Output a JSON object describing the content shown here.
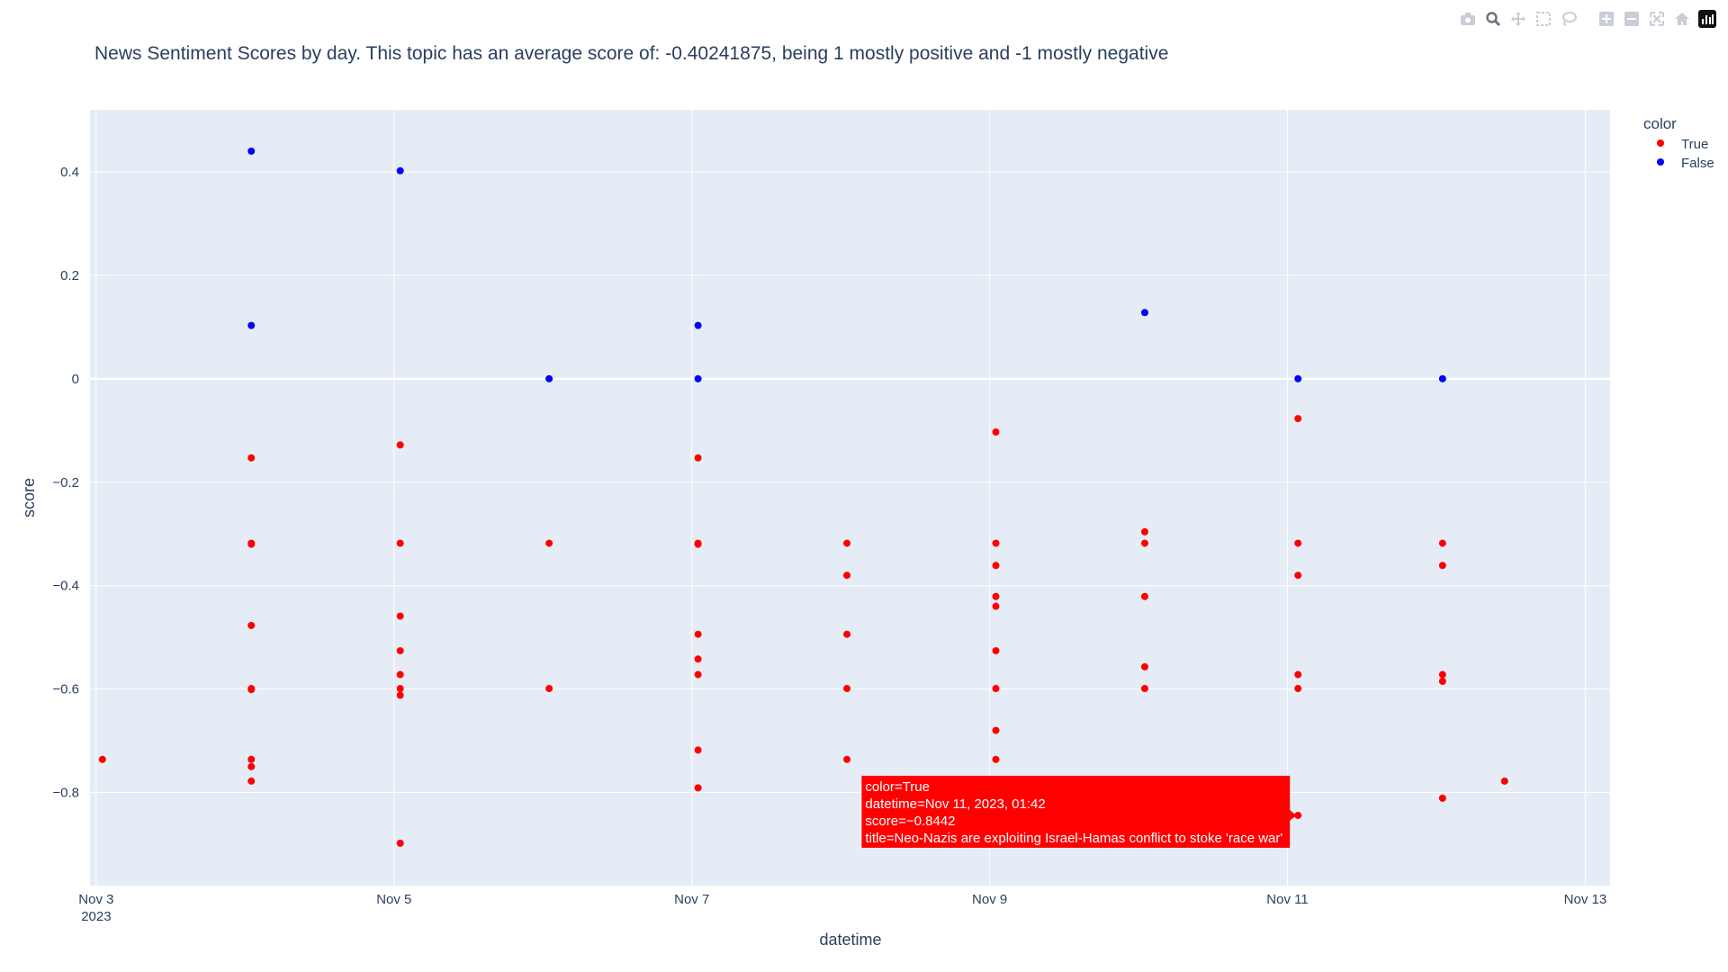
{
  "toolbar": {
    "icons": [
      "camera-icon",
      "zoom-icon",
      "pan-icon",
      "box-select-icon",
      "lasso-select-icon",
      "zoom-in-icon",
      "zoom-out-icon",
      "autoscale-icon",
      "reset-axes-icon",
      "plotly-logo-icon"
    ]
  },
  "chart_data": {
    "type": "scatter",
    "title": "News Sentiment Scores by day. This topic has an average score of: -0.40241875, being 1 mostly positive and -1 mostly negative",
    "xlabel": "datetime",
    "ylabel": "score",
    "x_ticks": [
      {
        "date": "2023-11-03",
        "label": "Nov 3",
        "sublabel": "2023"
      },
      {
        "date": "2023-11-05",
        "label": "Nov 5",
        "sublabel": ""
      },
      {
        "date": "2023-11-07",
        "label": "Nov 7",
        "sublabel": ""
      },
      {
        "date": "2023-11-09",
        "label": "Nov 9",
        "sublabel": ""
      },
      {
        "date": "2023-11-11",
        "label": "Nov 11",
        "sublabel": ""
      },
      {
        "date": "2023-11-13",
        "label": "Nov 13",
        "sublabel": ""
      }
    ],
    "y_ticks": [
      {
        "value": 0.4,
        "label": "0.4"
      },
      {
        "value": 0.2,
        "label": "0.2"
      },
      {
        "value": 0,
        "label": "0"
      },
      {
        "value": -0.2,
        "label": "−0.2"
      },
      {
        "value": -0.4,
        "label": "−0.4"
      },
      {
        "value": -0.6,
        "label": "−0.6"
      },
      {
        "value": -0.8,
        "label": "−0.8"
      }
    ],
    "xlim": [
      "2023-11-02T23:00",
      "2023-11-13T04:00"
    ],
    "ylim": [
      -0.98,
      0.52
    ],
    "grid": true,
    "legend": {
      "title": "color",
      "placement": "right"
    },
    "colors": {
      "plot_bg": "#E5ECF6",
      "grid": "#ffffff",
      "true": "#ff0000",
      "false": "#0000ff"
    },
    "series": [
      {
        "name": "True",
        "color": "#ff0000",
        "points": [
          {
            "x": "2023-11-03T01:00",
            "y": -0.736
          },
          {
            "x": "2023-11-04T01:00",
            "y": -0.153
          },
          {
            "x": "2023-11-04T01:00",
            "y": -0.318
          },
          {
            "x": "2023-11-04T01:00",
            "y": -0.32
          },
          {
            "x": "2023-11-04T01:00",
            "y": -0.477
          },
          {
            "x": "2023-11-04T01:00",
            "y": -0.599
          },
          {
            "x": "2023-11-04T01:00",
            "y": -0.601
          },
          {
            "x": "2023-11-04T01:00",
            "y": -0.736
          },
          {
            "x": "2023-11-04T01:00",
            "y": -0.75
          },
          {
            "x": "2023-11-04T01:00",
            "y": -0.778
          },
          {
            "x": "2023-11-05T01:00",
            "y": -0.128
          },
          {
            "x": "2023-11-05T01:00",
            "y": -0.318
          },
          {
            "x": "2023-11-05T01:00",
            "y": -0.459
          },
          {
            "x": "2023-11-05T01:00",
            "y": -0.526
          },
          {
            "x": "2023-11-05T01:00",
            "y": -0.572
          },
          {
            "x": "2023-11-05T01:00",
            "y": -0.599
          },
          {
            "x": "2023-11-05T01:00",
            "y": -0.612
          },
          {
            "x": "2023-11-05T01:00",
            "y": -0.898
          },
          {
            "x": "2023-11-06T01:00",
            "y": -0.318
          },
          {
            "x": "2023-11-06T01:00",
            "y": -0.599
          },
          {
            "x": "2023-11-07T01:00",
            "y": -0.153
          },
          {
            "x": "2023-11-07T01:00",
            "y": -0.318
          },
          {
            "x": "2023-11-07T01:00",
            "y": -0.32
          },
          {
            "x": "2023-11-07T01:00",
            "y": -0.494
          },
          {
            "x": "2023-11-07T01:00",
            "y": -0.542
          },
          {
            "x": "2023-11-07T01:00",
            "y": -0.572
          },
          {
            "x": "2023-11-07T01:00",
            "y": -0.718
          },
          {
            "x": "2023-11-07T01:00",
            "y": -0.791
          },
          {
            "x": "2023-11-08T01:00",
            "y": -0.318
          },
          {
            "x": "2023-11-08T01:00",
            "y": -0.38
          },
          {
            "x": "2023-11-08T01:00",
            "y": -0.494
          },
          {
            "x": "2023-11-08T01:00",
            "y": -0.599
          },
          {
            "x": "2023-11-08T01:00",
            "y": -0.736
          },
          {
            "x": "2023-11-09T01:00",
            "y": -0.103
          },
          {
            "x": "2023-11-09T01:00",
            "y": -0.318
          },
          {
            "x": "2023-11-09T01:00",
            "y": -0.361
          },
          {
            "x": "2023-11-09T01:00",
            "y": -0.421
          },
          {
            "x": "2023-11-09T01:00",
            "y": -0.44
          },
          {
            "x": "2023-11-09T01:00",
            "y": -0.526
          },
          {
            "x": "2023-11-09T01:00",
            "y": -0.599
          },
          {
            "x": "2023-11-09T01:00",
            "y": -0.68
          },
          {
            "x": "2023-11-09T01:00",
            "y": -0.736
          },
          {
            "x": "2023-11-10T01:00",
            "y": -0.296
          },
          {
            "x": "2023-11-10T01:00",
            "y": -0.318
          },
          {
            "x": "2023-11-10T01:00",
            "y": -0.421
          },
          {
            "x": "2023-11-10T01:00",
            "y": -0.557
          },
          {
            "x": "2023-11-10T01:00",
            "y": -0.599
          },
          {
            "x": "2023-11-11T01:42",
            "y": -0.077
          },
          {
            "x": "2023-11-11T01:42",
            "y": -0.318
          },
          {
            "x": "2023-11-11T01:42",
            "y": -0.38
          },
          {
            "x": "2023-11-11T01:42",
            "y": -0.572
          },
          {
            "x": "2023-11-11T01:42",
            "y": -0.599
          },
          {
            "x": "2023-11-11T01:42",
            "y": -0.8442
          },
          {
            "x": "2023-11-12T01:00",
            "y": -0.318
          },
          {
            "x": "2023-11-12T01:00",
            "y": -0.361
          },
          {
            "x": "2023-11-12T01:00",
            "y": -0.572
          },
          {
            "x": "2023-11-12T01:00",
            "y": -0.585
          },
          {
            "x": "2023-11-12T01:00",
            "y": -0.811
          },
          {
            "x": "2023-11-12T11:00",
            "y": -0.778
          }
        ]
      },
      {
        "name": "False",
        "color": "#0000ff",
        "points": [
          {
            "x": "2023-11-04T01:00",
            "y": 0.44
          },
          {
            "x": "2023-11-04T01:00",
            "y": 0.103
          },
          {
            "x": "2023-11-05T01:00",
            "y": 0.402
          },
          {
            "x": "2023-11-06T01:00",
            "y": 0.0
          },
          {
            "x": "2023-11-07T01:00",
            "y": 0.103
          },
          {
            "x": "2023-11-07T01:00",
            "y": 0.0
          },
          {
            "x": "2023-11-10T01:00",
            "y": 0.128
          },
          {
            "x": "2023-11-11T01:42",
            "y": 0.0
          },
          {
            "x": "2023-11-12T01:00",
            "y": 0.0
          }
        ]
      }
    ],
    "hover": {
      "point": {
        "x": "2023-11-11T01:42",
        "y": -0.8442
      },
      "lines": [
        "color=True",
        "datetime=Nov 11, 2023, 01:42",
        "score=−0.8442",
        "title=Neo-Nazis are exploiting Israel-Hamas conflict to stoke 'race war'"
      ]
    }
  }
}
